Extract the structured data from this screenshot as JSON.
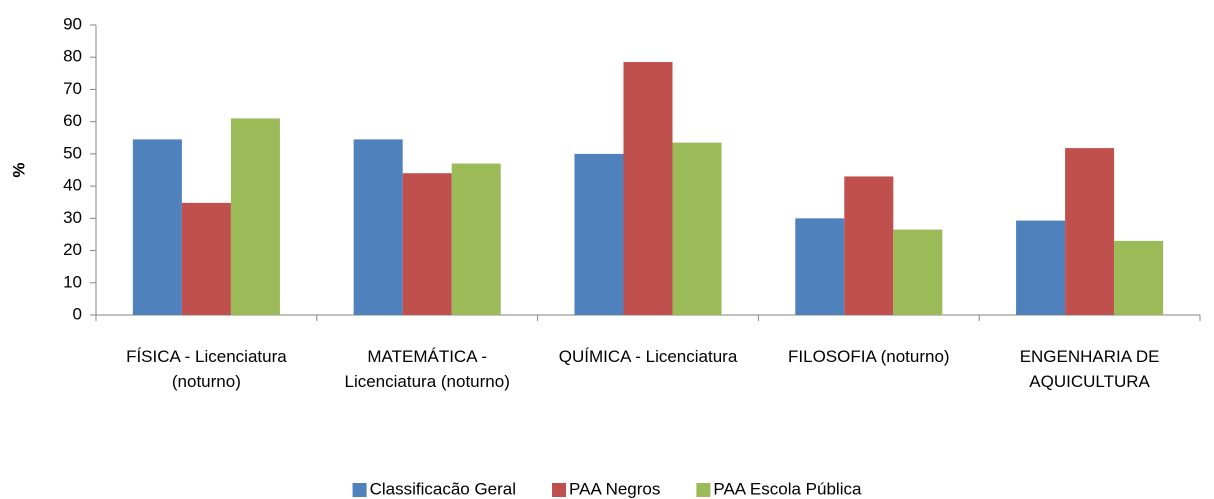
{
  "chart_data": {
    "type": "bar",
    "y_label": "%",
    "categories": [
      "FÍSICA - Licenciatura (noturno)",
      "MATEMÁTICA - Licenciatura (noturno)",
      "QUÍMICA - Licenciatura",
      "FILOSOFIA (noturno)",
      "ENGENHARIA DE AQUICULTURA"
    ],
    "series": [
      {
        "name": "Classificacão Geral",
        "color": "#4f81bd",
        "values": [
          54.5,
          54.5,
          50,
          30,
          29.3
        ]
      },
      {
        "name": "PAA Negros",
        "color": "#c0504d",
        "values": [
          34.8,
          44,
          78.5,
          43,
          51.8
        ]
      },
      {
        "name": "PAA Escola Pública",
        "color": "#9bbb59",
        "values": [
          61,
          47,
          53.5,
          26.5,
          23
        ]
      }
    ],
    "ylim": [
      0,
      90
    ],
    "yticks": [
      0,
      10,
      20,
      30,
      40,
      50,
      60,
      70,
      80,
      90
    ],
    "grid": false,
    "legend": "bottom"
  }
}
